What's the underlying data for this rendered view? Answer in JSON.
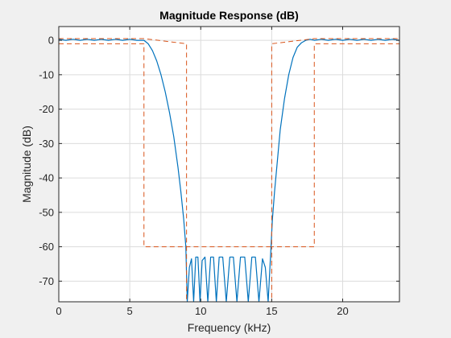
{
  "chart_data": {
    "type": "line",
    "title": "Magnitude Response (dB)",
    "xlabel": "Frequency (kHz)",
    "ylabel": "Magnitude (dB)",
    "xlim": [
      0,
      24
    ],
    "ylim": [
      -76,
      4
    ],
    "xticks": [
      0,
      5,
      10,
      15,
      20
    ],
    "yticks": [
      0,
      -10,
      -20,
      -30,
      -40,
      -50,
      -60,
      -70
    ],
    "grid": true,
    "colors": {
      "response": "#0072bd",
      "mask": "#d9541a",
      "axes_bg": "#ffffff",
      "grid": "#dcdcdc",
      "figure_bg": "#f0f0f0"
    },
    "series": [
      {
        "kind": "response",
        "x": [
          0,
          0.5,
          1,
          1.5,
          2,
          2.5,
          3,
          3.5,
          4,
          4.5,
          5,
          5.5,
          6,
          6.3,
          6.6,
          6.9,
          7.2,
          7.5,
          7.8,
          8.1,
          8.4,
          8.6,
          8.8,
          8.95,
          9.05,
          9.2,
          9.35,
          9.5,
          9.65,
          9.8,
          9.95,
          10.1,
          10.3,
          10.5,
          10.7,
          10.9,
          11.1,
          11.3,
          11.55,
          11.8,
          12.05,
          12.3,
          12.55,
          12.8,
          13.1,
          13.35,
          13.6,
          13.85,
          14.1,
          14.35,
          14.55,
          14.75,
          14.95,
          15.05,
          15.2,
          15.4,
          15.6,
          15.9,
          16.2,
          16.5,
          16.8,
          17.1,
          17.4,
          17.7,
          18,
          18.5,
          19,
          19.5,
          20,
          20.5,
          21,
          21.5,
          22,
          22.5,
          23,
          23.5,
          24
        ],
        "y": [
          0.3,
          0,
          0.3,
          0,
          0.3,
          0,
          0.3,
          0,
          0.3,
          0,
          0.3,
          0,
          0,
          -1,
          -3,
          -6,
          -10,
          -15,
          -21,
          -28,
          -37,
          -44,
          -52,
          -60,
          -76,
          -66,
          -63.5,
          -76,
          -63,
          -63,
          -76,
          -64,
          -63,
          -76,
          -63,
          -63,
          -76,
          -63,
          -63,
          -76,
          -63,
          -63,
          -76,
          -63,
          -63,
          -76,
          -63,
          -63,
          -76,
          -63.5,
          -66,
          -76,
          -60,
          -52,
          -44,
          -35,
          -26,
          -17,
          -10,
          -5,
          -2,
          -0.7,
          0,
          0.3,
          0,
          0.3,
          0,
          0.3,
          0,
          0.3,
          0,
          0.3,
          0,
          0.3,
          0,
          0.3,
          0
        ]
      },
      {
        "kind": "mask",
        "x": [
          0,
          6,
          6,
          9,
          9,
          15,
          15,
          18,
          18,
          24
        ],
        "y": [
          -1,
          -1,
          -60,
          -60,
          -76,
          -76,
          -60,
          -60,
          -1,
          -1
        ]
      },
      {
        "kind": "mask",
        "x": [
          0,
          6,
          6,
          9,
          9,
          15,
          15,
          18,
          18,
          24
        ],
        "y": [
          0.5,
          0.5,
          0.5,
          -1,
          -60,
          -60,
          -1,
          0.5,
          0.5,
          0.5
        ]
      }
    ]
  }
}
